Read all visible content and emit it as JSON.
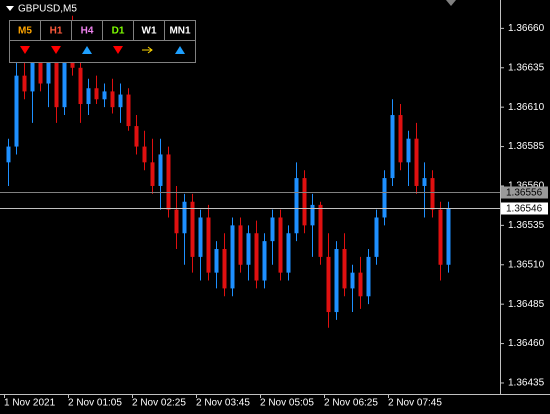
{
  "chart_data": {
    "type": "candlestick",
    "title": "GBPUSD,M5",
    "categories": [
      "1 Nov 2021",
      null,
      null,
      null,
      null,
      null,
      null,
      null,
      "2 Nov 01:05",
      null,
      null,
      null,
      null,
      null,
      null,
      null,
      "2 Nov 02:25",
      null,
      null,
      null,
      null,
      null,
      null,
      null,
      "2 Nov 03:45",
      null,
      null,
      null,
      null,
      null,
      null,
      null,
      "2 Nov 05:05",
      null,
      null,
      null,
      null,
      null,
      null,
      null,
      "2 Nov 06:25",
      null,
      null,
      null,
      null,
      null,
      null,
      null,
      "2 Nov 07:45",
      null,
      null,
      null,
      null,
      null,
      null,
      null
    ],
    "open": [
      1.36575,
      1.36585,
      1.3663,
      1.3662,
      1.36645,
      1.36625,
      1.36655,
      1.3661,
      1.3664,
      1.36635,
      1.36612,
      1.36622,
      1.36615,
      1.3662,
      1.3661,
      1.36618,
      1.36598,
      1.36585,
      1.36575,
      1.3656,
      1.3658,
      1.36545,
      1.3653,
      1.3655,
      1.36515,
      1.3654,
      1.36505,
      1.3652,
      1.36495,
      1.36535,
      1.3651,
      1.3653,
      1.365,
      1.36525,
      1.3654,
      1.36505,
      1.3653,
      1.36565,
      1.36535,
      1.36548,
      1.36515,
      1.3648,
      1.3652,
      1.36495,
      1.36505,
      1.3649,
      1.36515,
      1.3654,
      1.36565,
      1.36605,
      1.36575,
      1.3659,
      1.3656,
      1.36565,
      1.36545,
      1.3651
    ],
    "high": [
      1.3659,
      1.3664,
      1.36655,
      1.3665,
      1.3666,
      1.36665,
      1.3666,
      1.3665,
      1.36668,
      1.3664,
      1.36628,
      1.3663,
      1.36625,
      1.36628,
      1.36625,
      1.36622,
      1.36605,
      1.36595,
      1.3659,
      1.3659,
      1.36585,
      1.3656,
      1.36555,
      1.36555,
      1.36545,
      1.36548,
      1.36525,
      1.3653,
      1.3654,
      1.3654,
      1.36535,
      1.36538,
      1.3653,
      1.36545,
      1.36545,
      1.36535,
      1.36575,
      1.3657,
      1.36555,
      1.3655,
      1.3653,
      1.36525,
      1.3653,
      1.3651,
      1.36515,
      1.3652,
      1.36545,
      1.3657,
      1.36615,
      1.36612,
      1.36595,
      1.366,
      1.36575,
      1.3657,
      1.3655,
      1.3655
    ],
    "low": [
      1.3656,
      1.3658,
      1.36615,
      1.366,
      1.3662,
      1.3661,
      1.366,
      1.36605,
      1.3663,
      1.366,
      1.36605,
      1.36612,
      1.3661,
      1.36606,
      1.366,
      1.36595,
      1.3658,
      1.3657,
      1.36555,
      1.36545,
      1.3654,
      1.3652,
      1.3651,
      1.36505,
      1.365,
      1.365,
      1.36495,
      1.3649,
      1.3649,
      1.36505,
      1.365,
      1.36495,
      1.36495,
      1.3651,
      1.365,
      1.365,
      1.36525,
      1.3653,
      1.36515,
      1.3651,
      1.3647,
      1.36475,
      1.3649,
      1.3648,
      1.36482,
      1.36485,
      1.3651,
      1.36535,
      1.3656,
      1.3657,
      1.3656,
      1.36555,
      1.3654,
      1.3654,
      1.365,
      1.36505
    ],
    "close": [
      1.36585,
      1.3663,
      1.3662,
      1.36645,
      1.36625,
      1.36655,
      1.3661,
      1.3664,
      1.36635,
      1.36612,
      1.36622,
      1.36615,
      1.3662,
      1.3661,
      1.36618,
      1.36598,
      1.36585,
      1.36575,
      1.3656,
      1.3658,
      1.36545,
      1.3653,
      1.3655,
      1.36515,
      1.3654,
      1.36505,
      1.3652,
      1.36495,
      1.36535,
      1.3651,
      1.3653,
      1.365,
      1.36525,
      1.3654,
      1.36505,
      1.3653,
      1.36565,
      1.36535,
      1.36548,
      1.36515,
      1.3648,
      1.3652,
      1.36495,
      1.36505,
      1.3649,
      1.36515,
      1.3654,
      1.36565,
      1.36605,
      1.36575,
      1.3659,
      1.3656,
      1.36565,
      1.36545,
      1.3651,
      1.36546
    ],
    "up_color": "#1e90ff",
    "down_color": "#e01010",
    "ylim": [
      1.36428,
      1.36678
    ],
    "yticks": [
      {
        "value": 1.3666,
        "label": "1.36660"
      },
      1.36635,
      {
        "value": 1.3661,
        "label": "1.36610"
      },
      1.36585,
      {
        "value": 1.3656,
        "label": "1.36560"
      },
      1.36535,
      {
        "value": 1.3651,
        "label": "1.36510"
      },
      1.36485,
      {
        "value": 1.3646,
        "label": "1.36460"
      },
      1.36435
    ],
    "price_lines": [
      1.36556,
      1.36546
    ]
  },
  "panel": {
    "labels": [
      "M5",
      "H1",
      "H4",
      "D1",
      "W1",
      "MN1"
    ],
    "label_colors": [
      "#ffa500",
      "#ff5a3c",
      "#ee82ee",
      "#7fff00",
      "#ffffff",
      "#ffffff"
    ]
  }
}
